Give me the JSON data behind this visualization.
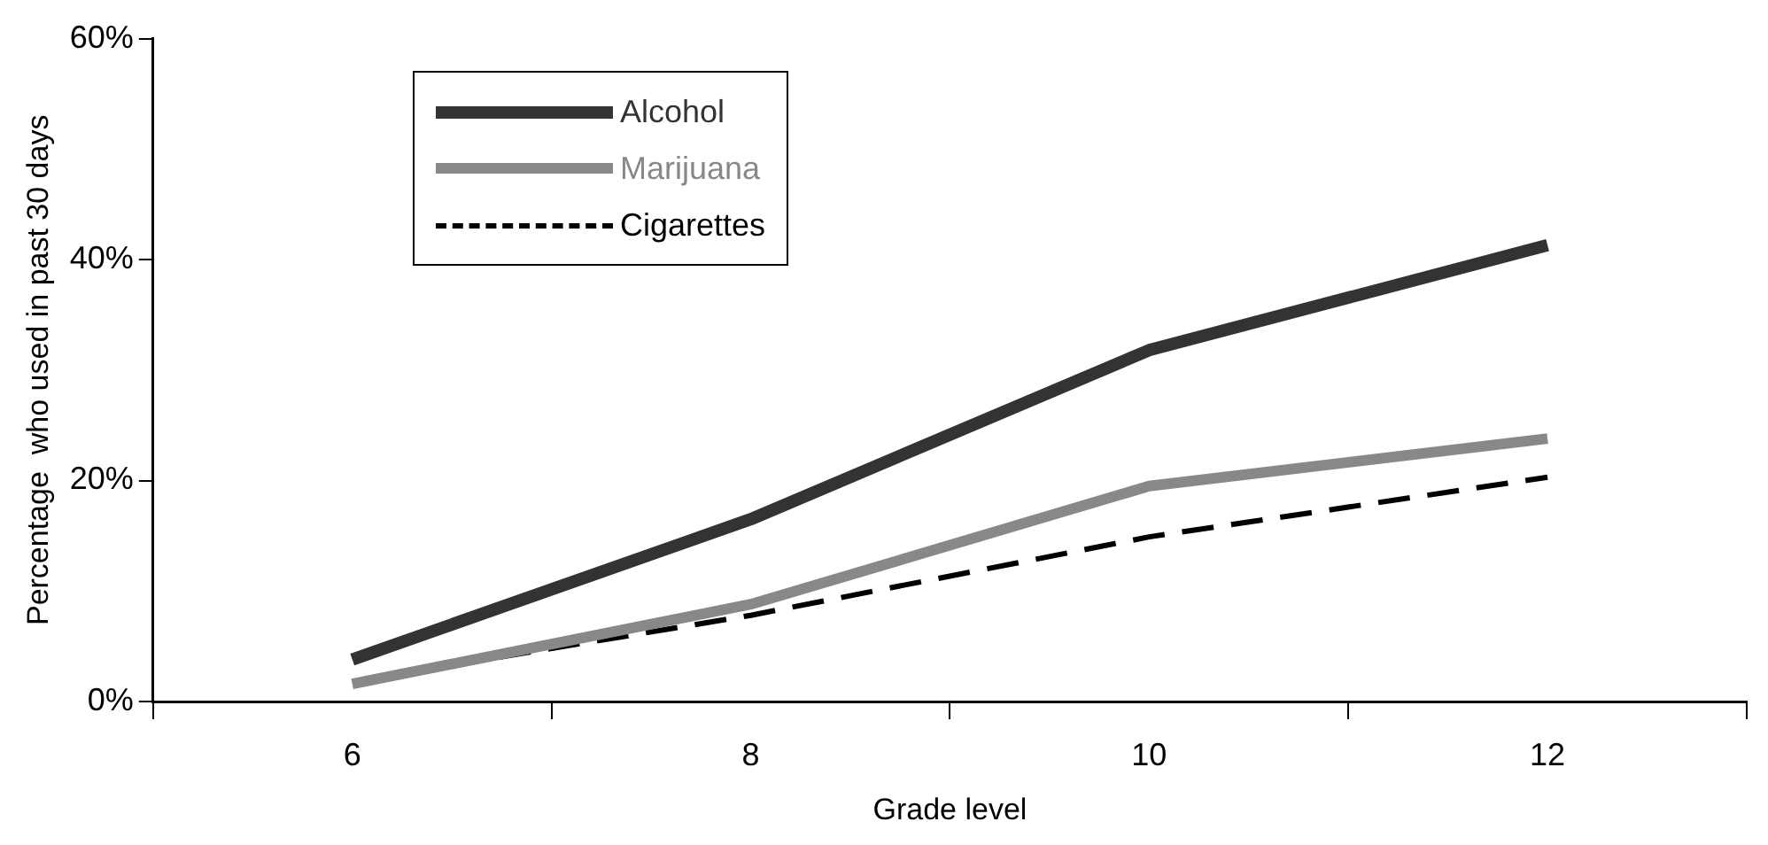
{
  "chart_data": {
    "type": "line",
    "xlabel": "Grade level",
    "ylabel": "Percentage  who used in past 30 days",
    "categories": [
      "6",
      "8",
      "10",
      "12"
    ],
    "series": [
      {
        "name": "Alcohol",
        "color": "#333333",
        "values": [
          3.8,
          16.5,
          31.8,
          41.3
        ]
      },
      {
        "name": "Marijuana",
        "color": "#888888",
        "values": [
          1.6,
          8.8,
          19.5,
          23.8
        ]
      },
      {
        "name": "Cigarettes",
        "color": "#000000",
        "values": [
          1.8,
          7.8,
          14.9,
          20.3
        ],
        "line_style": "dashed"
      }
    ],
    "ylim": [
      0,
      60
    ],
    "yticks": [
      {
        "value": 0,
        "label": "0%"
      },
      {
        "value": 20,
        "label": "20%"
      },
      {
        "value": 40,
        "label": "40%"
      },
      {
        "value": 60,
        "label": "60%"
      }
    ],
    "grid": false,
    "legend": "top left",
    "marker": "none",
    "line_style": "solid"
  }
}
